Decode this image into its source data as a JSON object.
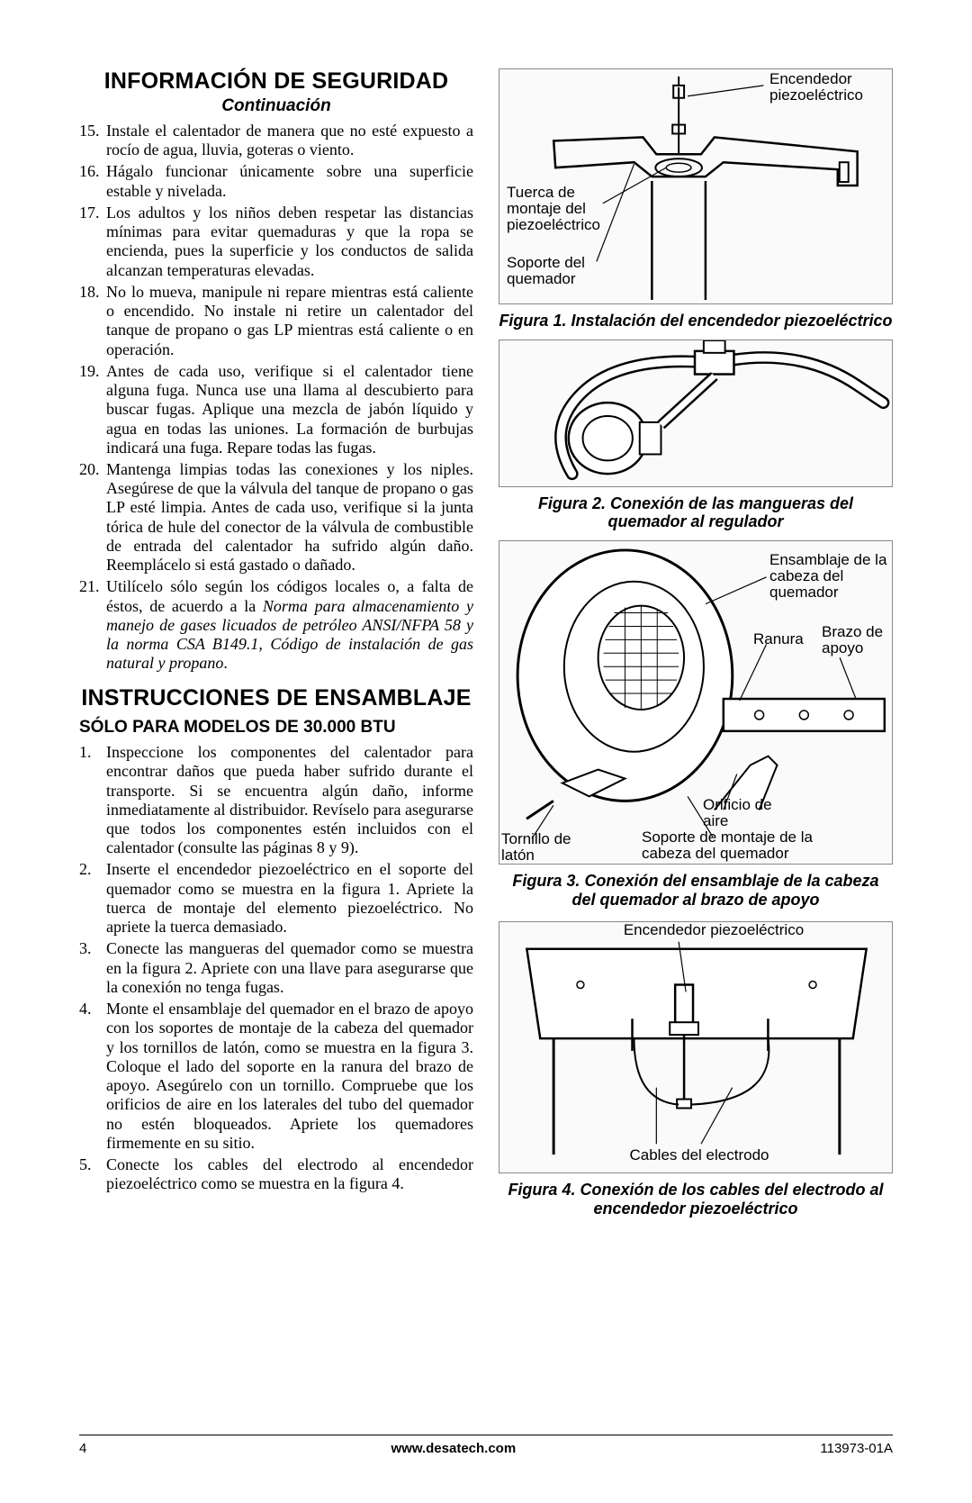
{
  "left": {
    "safety_title": "INFORMACIÓN DE SEGURIDAD",
    "continuation": "Continuación",
    "safety_items": [
      {
        "n": "15.",
        "t": "Instale el calentador de manera que no esté expuesto a rocío de agua, lluvia, goteras o viento."
      },
      {
        "n": "16.",
        "t": "Hágalo funcionar únicamente sobre una superficie estable y nivelada."
      },
      {
        "n": "17.",
        "t": "Los adultos y los niños deben respetar las distancias mínimas para evitar quemaduras y que la ropa se encienda, pues la superficie y los conductos de salida alcanzan temperaturas elevadas."
      },
      {
        "n": "18.",
        "t": "No lo mueva, manipule ni repare mientras está caliente o encendido. No instale ni retire un calentador del tanque de propano o gas LP mientras está caliente o en operación."
      },
      {
        "n": "19.",
        "t": "Antes de cada uso, verifique si el calentador tiene alguna fuga. Nunca use una llama al descubierto para buscar fugas. Aplique una mezcla de jabón líquido y agua en todas las uniones. La formación de burbujas indicará una fuga. Repare todas las fugas."
      },
      {
        "n": "20.",
        "t": "Mantenga limpias todas las conexiones y los niples. Asegúrese de que la válvula del tanque de propano o gas LP esté limpia. Antes de cada uso, verifique si la junta tórica de hule del conector de la válvula de combustible de entrada del calentador ha sufrido algún daño. Reemplácelo si está gastado o dañado."
      },
      {
        "n": "21.",
        "t": "Utilícelo sólo según los códigos locales o, a falta de éstos, de acuerdo a la ",
        "italic": "Norma para almacenamiento y manejo de gases licuados de petróleo ANSI/NFPA 58 y la norma CSA B149.1, Código de instalación de gas natural y propano",
        "tail": "."
      }
    ],
    "assembly_title": "INSTRUCCIONES DE ENSAMBLAJE",
    "subsection": "SÓLO PARA MODELOS DE 30.000 BTU",
    "assembly_items": [
      {
        "n": "1.",
        "t": "Inspeccione los componentes del calentador para encontrar daños que pueda haber sufrido durante el transporte. Si se encuentra algún daño, informe inmediatamente al distribuidor.  Revíselo para asegurarse que todos los componentes estén incluidos con el calentador (consulte las páginas 8 y 9)."
      },
      {
        "n": "2.",
        "t": "Inserte el encendedor piezoeléctrico en el soporte del quemador como se muestra en la figura 1. Apriete la tuerca de montaje del elemento piezoeléctrico. No apriete la tuerca demasiado."
      },
      {
        "n": "3.",
        "t": "Conecte las mangueras del quemador como se muestra en la figura 2. Apriete con una llave para asegurarse que la conexión no tenga fugas."
      },
      {
        "n": "4.",
        "t": "Monte el ensamblaje del quemador en el brazo de apoyo con los soportes de montaje de la cabeza del quemador y los tornillos de latón, como se muestra en la figura 3. Coloque el lado del soporte en la ranura del brazo de apoyo. Asegúrelo con un tornillo. Compruebe que los orificios de aire en los laterales del tubo del quemador no estén bloqueados. Apriete los quemadores firmemente en su sitio."
      },
      {
        "n": "5.",
        "t": "Conecte los cables del electrodo al encendedor piezoeléctrico como se muestra en la figura 4."
      }
    ]
  },
  "right": {
    "fig1": {
      "labels": {
        "igniter": "Encendedor piezoeléctrico",
        "nut": "Tuerca de montaje del piezoeléctrico",
        "bracket": "Soporte del quemador"
      },
      "caption": "Figura 1. Instalación del encendedor piezoeléctrico"
    },
    "fig2": {
      "caption": "Figura 2. Conexión de las mangueras del quemador al regulador"
    },
    "fig3": {
      "labels": {
        "head": "Ensamblaje de la cabeza del quemador",
        "slot": "Ranura",
        "arm": "Brazo de apoyo",
        "orifice": "Orificio de aire",
        "brass": "Tornillo de latón",
        "mount": "Soporte de montaje de la cabeza del quemador"
      },
      "caption": "Figura 3. Conexión del ensamblaje de la cabeza del quemador al brazo de apoyo"
    },
    "fig4": {
      "labels": {
        "igniter": "Encendedor piezoeléctrico",
        "wires": "Cables del electrodo"
      },
      "caption": "Figura 4. Conexión de los cables del electrodo al encendedor piezoeléctrico"
    }
  },
  "footer": {
    "page": "4",
    "url": "www.desatech.com",
    "doc": "113973-01A"
  },
  "colors": {
    "text": "#000000",
    "background": "#ffffff",
    "placeholder_border": "#888888",
    "placeholder_bg": "#fafafa"
  },
  "typography": {
    "body_font": "Times New Roman",
    "heading_font": "Arial",
    "body_size_pt": 13,
    "h1_size_pt": 19,
    "caption_size_pt": 14
  }
}
